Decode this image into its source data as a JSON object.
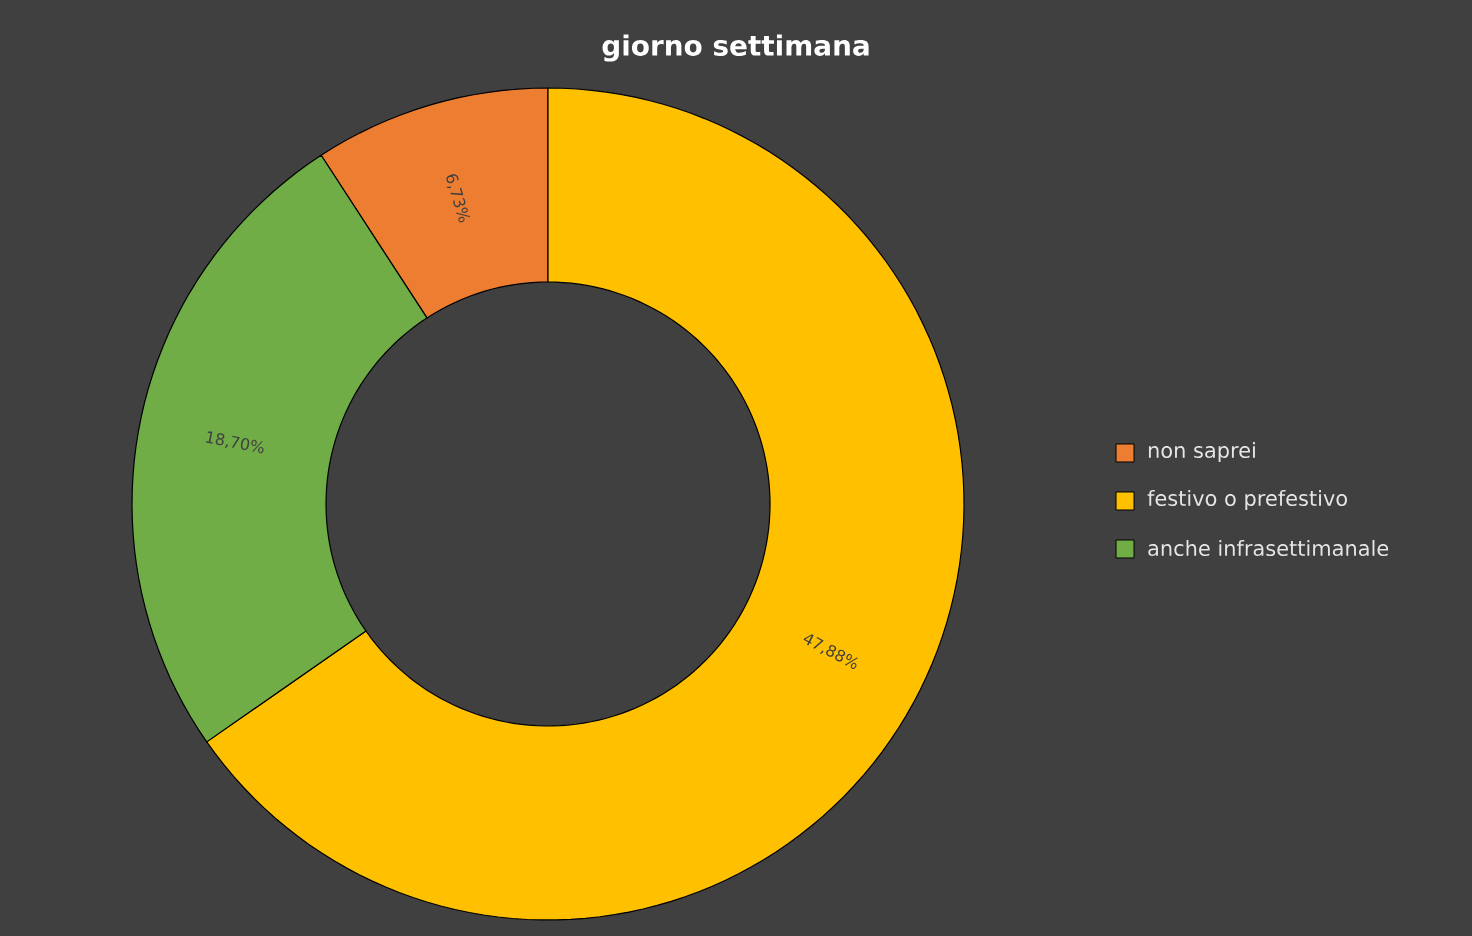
{
  "chart_data": {
    "type": "donut",
    "title": "giorno  settimana",
    "categories": [
      "non saprei",
      "festivo o prefestivo",
      "anche infrasettimanale"
    ],
    "values": [
      6.73,
      47.88,
      18.7
    ],
    "value_labels": [
      "6,73%",
      "47,88%",
      "18,70%"
    ],
    "colors": [
      "#ed7d31",
      "#ffc000",
      "#70ad47"
    ],
    "legend": "right"
  }
}
